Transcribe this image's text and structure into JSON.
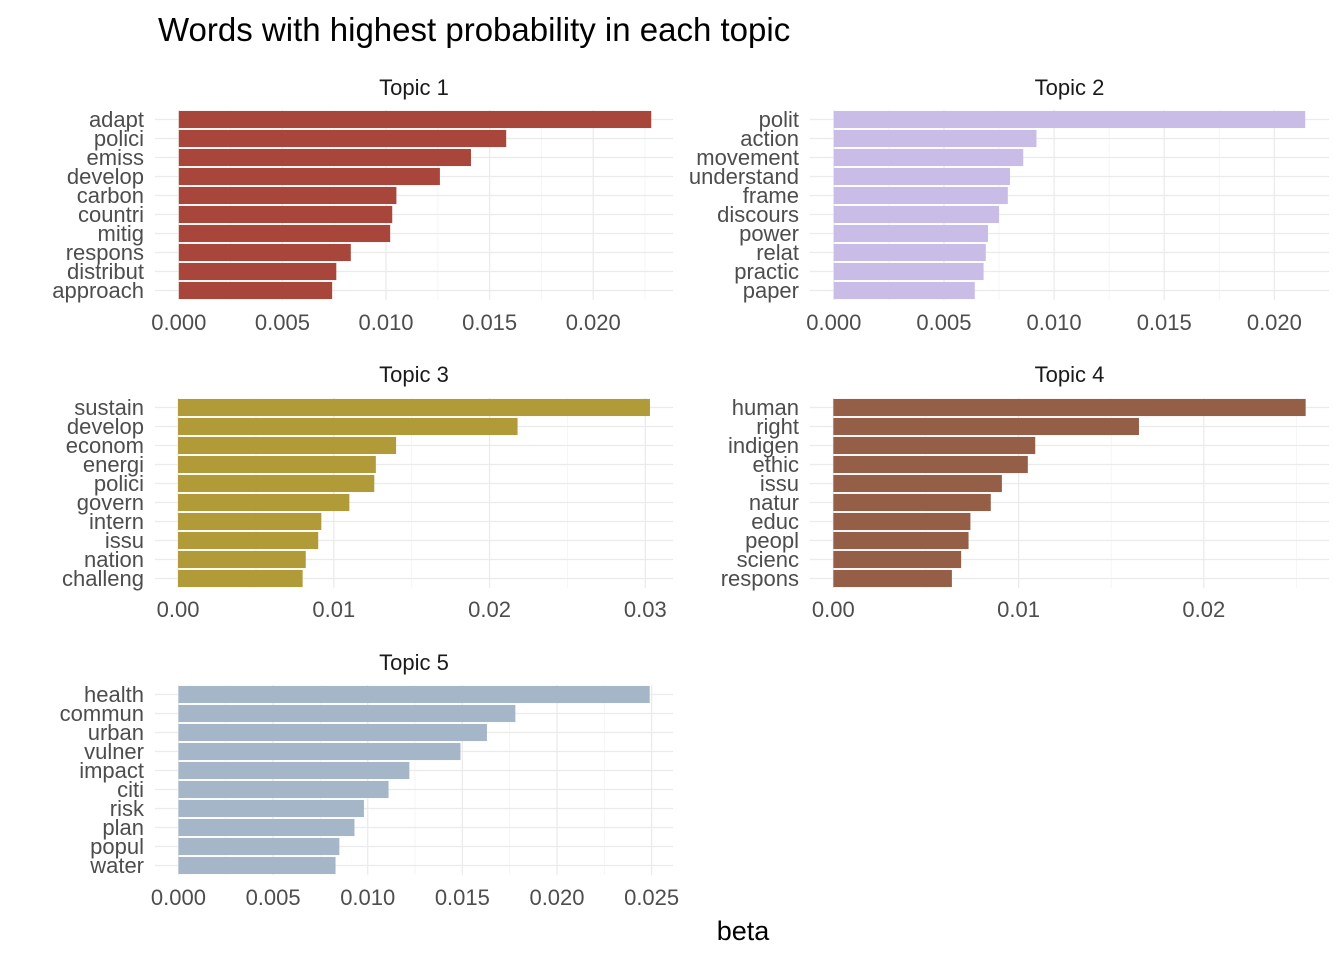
{
  "chart_data": {
    "type": "bar",
    "orientation": "horizontal",
    "title": "Words with highest probability in each topic",
    "xlabel": "beta",
    "ylabel": "",
    "grid": true,
    "legend": "none",
    "facets": [
      {
        "title": "Topic 1",
        "color": "#A8463C",
        "xlim": [
          -0.00115,
          0.02385
        ],
        "ticks": [
          "0.000",
          "0.005",
          "0.010",
          "0.015",
          "0.020"
        ],
        "categories": [
          "adapt",
          "polici",
          "emiss",
          "develop",
          "carbon",
          "countri",
          "mitig",
          "respons",
          "distribut",
          "approach"
        ],
        "values": [
          0.0228,
          0.0158,
          0.0141,
          0.0126,
          0.0105,
          0.0103,
          0.0102,
          0.0083,
          0.0076,
          0.0074
        ]
      },
      {
        "title": "Topic 2",
        "color": "#C9BCE7",
        "xlim": [
          -0.00108,
          0.02248
        ],
        "ticks": [
          "0.000",
          "0.005",
          "0.010",
          "0.015",
          "0.020"
        ],
        "categories": [
          "polit",
          "action",
          "movement",
          "understand",
          "frame",
          "discours",
          "power",
          "relat",
          "practic",
          "paper"
        ],
        "values": [
          0.0214,
          0.0092,
          0.0086,
          0.008,
          0.0079,
          0.0075,
          0.007,
          0.0069,
          0.0068,
          0.0064
        ]
      },
      {
        "title": "Topic 3",
        "color": "#B09B38",
        "xlim": [
          -0.00148,
          0.03178
        ],
        "ticks": [
          "0.00",
          "0.01",
          "0.02",
          "0.03"
        ],
        "categories": [
          "sustain",
          "develop",
          "econom",
          "energi",
          "polici",
          "govern",
          "intern",
          "issu",
          "nation",
          "challeng"
        ],
        "values": [
          0.0303,
          0.0218,
          0.014,
          0.0127,
          0.0126,
          0.011,
          0.0092,
          0.009,
          0.0082,
          0.008
        ]
      },
      {
        "title": "Topic 4",
        "color": "#955E47",
        "xlim": [
          -0.00126,
          0.02676
        ],
        "ticks": [
          "0.00",
          "0.01",
          "0.02"
        ],
        "categories": [
          "human",
          "right",
          "indigen",
          "ethic",
          "issu",
          "natur",
          "educ",
          "peopl",
          "scienc",
          "respons"
        ],
        "values": [
          0.0255,
          0.0165,
          0.0109,
          0.0105,
          0.0091,
          0.0085,
          0.0074,
          0.0073,
          0.0069,
          0.0064
        ]
      },
      {
        "title": "Topic 5",
        "color": "#A6B6C9",
        "xlim": [
          -0.00124,
          0.02613
        ],
        "ticks": [
          "0.000",
          "0.005",
          "0.010",
          "0.015",
          "0.020",
          "0.025"
        ],
        "categories": [
          "health",
          "commun",
          "urban",
          "vulner",
          "impact",
          "citi",
          "risk",
          "plan",
          "popul",
          "water"
        ],
        "values": [
          0.0249,
          0.0178,
          0.0163,
          0.0149,
          0.0122,
          0.0111,
          0.0098,
          0.0093,
          0.0085,
          0.0083
        ]
      }
    ]
  }
}
